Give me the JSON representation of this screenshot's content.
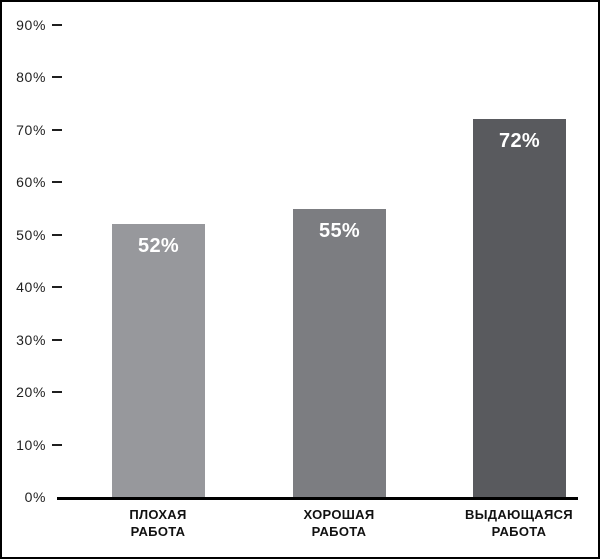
{
  "chart_data": {
    "type": "bar",
    "title": "",
    "xlabel": "",
    "ylabel": "",
    "categories": [
      "ПЛОХАЯ РАБОТА",
      "ХОРОШАЯ РАБОТА",
      "ВЫДАЮЩАЯСЯ РАБОТА"
    ],
    "category_lines": [
      [
        "ПЛОХАЯ",
        "РАБОТА"
      ],
      [
        "ХОРОШАЯ",
        "РАБОТА"
      ],
      [
        "ВЫДАЮЩАЯСЯ",
        "РАБОТА"
      ]
    ],
    "values": [
      52,
      55,
      72
    ],
    "value_labels": [
      "52%",
      "55%",
      "72%"
    ],
    "bar_colors": [
      "#97989c",
      "#7c7d81",
      "#595a5e"
    ],
    "ylim": [
      0,
      90
    ],
    "ytick_step": 10,
    "ytick_labels": [
      "0%",
      "10%",
      "20%",
      "30%",
      "40%",
      "50%",
      "60%",
      "70%",
      "80%",
      "90%"
    ],
    "grid": false,
    "legend_position": "none",
    "colors": {
      "background": "#ffffff",
      "frame_border": "#000000",
      "axis": "#000000",
      "tick_text": "#1f1f1f",
      "category_text": "#111111",
      "value_text": "#ffffff"
    }
  }
}
